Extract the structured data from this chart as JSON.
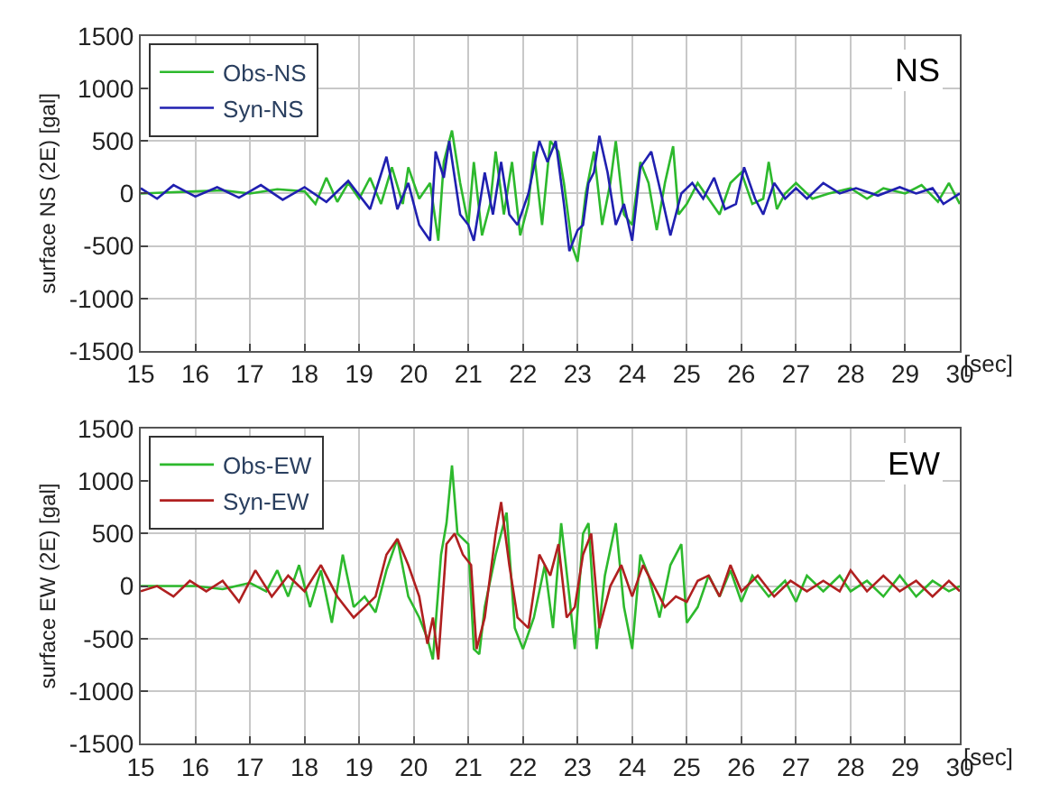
{
  "chart_data": [
    {
      "type": "line",
      "xlabel": "[sec]",
      "ylabel": "surface NS (2E) [gal]",
      "xlim": [
        15,
        30
      ],
      "ylim": [
        -1500,
        1500
      ],
      "xticks": [
        15,
        16,
        17,
        18,
        19,
        20,
        21,
        22,
        23,
        24,
        25,
        26,
        27,
        28,
        29,
        30
      ],
      "yticks": [
        -1500,
        -1000,
        -500,
        0,
        500,
        1000,
        1500
      ],
      "grid": true,
      "legend": "top left",
      "marker": "none",
      "line_style": "solid",
      "annotations": [
        "NS"
      ],
      "series": [
        {
          "name": "Obs-NS",
          "color": "#2db92d",
          "x": [
            15,
            15.5,
            16,
            16.5,
            17,
            17.5,
            18,
            18.2,
            18.4,
            18.6,
            18.8,
            19,
            19.2,
            19.4,
            19.6,
            19.8,
            19.9,
            20.1,
            20.3,
            20.45,
            20.55,
            20.7,
            20.85,
            21,
            21.1,
            21.25,
            21.4,
            21.5,
            21.65,
            21.8,
            21.95,
            22.1,
            22.2,
            22.35,
            22.5,
            22.65,
            22.75,
            22.9,
            23,
            23.15,
            23.3,
            23.45,
            23.6,
            23.7,
            23.85,
            24,
            24.15,
            24.3,
            24.45,
            24.6,
            24.75,
            24.85,
            25,
            25.2,
            25.4,
            25.6,
            25.8,
            26,
            26.2,
            26.4,
            26.5,
            26.65,
            26.8,
            27,
            27.3,
            27.6,
            28,
            28.3,
            28.6,
            29,
            29.3,
            29.6,
            29.8,
            30
          ],
          "values": [
            0,
            10,
            20,
            30,
            0,
            40,
            20,
            -100,
            150,
            -80,
            100,
            -50,
            150,
            -100,
            250,
            -100,
            250,
            -50,
            100,
            -450,
            300,
            600,
            100,
            -300,
            300,
            -400,
            -100,
            400,
            -200,
            300,
            -400,
            -100,
            400,
            -300,
            500,
            400,
            100,
            -500,
            -650,
            0,
            400,
            -300,
            100,
            500,
            -200,
            -300,
            300,
            100,
            -350,
            100,
            450,
            -200,
            -100,
            100,
            -50,
            -200,
            100,
            200,
            -100,
            -50,
            300,
            -150,
            0,
            100,
            -50,
            0,
            50,
            -50,
            50,
            0,
            80,
            -80,
            100,
            -100
          ]
        },
        {
          "name": "Syn-NS",
          "color": "#2020b0",
          "x": [
            15,
            15.3,
            15.6,
            16,
            16.4,
            16.8,
            17.2,
            17.6,
            18,
            18.4,
            18.8,
            19.2,
            19.5,
            19.7,
            19.9,
            20.1,
            20.3,
            20.4,
            20.55,
            20.65,
            20.85,
            21,
            21.1,
            21.3,
            21.45,
            21.6,
            21.75,
            21.9,
            22.1,
            22.3,
            22.45,
            22.6,
            22.75,
            22.85,
            23,
            23.1,
            23.2,
            23.3,
            23.4,
            23.55,
            23.7,
            23.85,
            24,
            24.15,
            24.35,
            24.55,
            24.7,
            24.9,
            25.1,
            25.3,
            25.5,
            25.7,
            25.9,
            26.05,
            26.25,
            26.4,
            26.6,
            26.8,
            27,
            27.2,
            27.5,
            27.8,
            28.1,
            28.5,
            28.9,
            29.2,
            29.5,
            29.7,
            30
          ],
          "values": [
            50,
            -50,
            80,
            -30,
            60,
            -40,
            80,
            -60,
            60,
            -80,
            120,
            -150,
            350,
            -150,
            100,
            -300,
            -450,
            400,
            150,
            500,
            -200,
            -300,
            -450,
            200,
            -200,
            300,
            -200,
            -300,
            0,
            500,
            300,
            500,
            -100,
            -550,
            -350,
            -300,
            100,
            200,
            550,
            200,
            -300,
            -100,
            -450,
            250,
            400,
            -50,
            -400,
            0,
            100,
            -50,
            150,
            -150,
            -100,
            250,
            -50,
            -200,
            100,
            -50,
            50,
            -50,
            100,
            0,
            50,
            -20,
            60,
            0,
            50,
            -100,
            0
          ]
        }
      ]
    },
    {
      "type": "line",
      "xlabel": "[sec]",
      "ylabel": "surface EW (2E) [gal]",
      "xlim": [
        15,
        30
      ],
      "ylim": [
        -1500,
        1500
      ],
      "xticks": [
        15,
        16,
        17,
        18,
        19,
        20,
        21,
        22,
        23,
        24,
        25,
        26,
        27,
        28,
        29,
        30
      ],
      "yticks": [
        -1500,
        -1000,
        -500,
        0,
        500,
        1000,
        1500
      ],
      "grid": true,
      "legend": "top left",
      "marker": "none",
      "line_style": "solid",
      "annotations": [
        "EW"
      ],
      "series": [
        {
          "name": "Obs-EW",
          "color": "#2db92d",
          "x": [
            15,
            16,
            16.5,
            17,
            17.3,
            17.5,
            17.7,
            17.9,
            18.1,
            18.3,
            18.5,
            18.7,
            18.9,
            19.1,
            19.3,
            19.5,
            19.7,
            19.9,
            20.1,
            20.25,
            20.35,
            20.5,
            20.6,
            20.7,
            20.8,
            21,
            21.1,
            21.2,
            21.3,
            21.5,
            21.7,
            21.85,
            22,
            22.2,
            22.4,
            22.55,
            22.7,
            22.85,
            22.95,
            23.1,
            23.2,
            23.35,
            23.5,
            23.7,
            23.85,
            24,
            24.15,
            24.3,
            24.5,
            24.7,
            24.9,
            25,
            25.2,
            25.4,
            25.6,
            25.8,
            26,
            26.2,
            26.5,
            26.8,
            27,
            27.2,
            27.5,
            27.8,
            28,
            28.3,
            28.6,
            28.9,
            29.2,
            29.5,
            29.8,
            30
          ],
          "values": [
            0,
            0,
            -30,
            30,
            -50,
            150,
            -100,
            200,
            -200,
            150,
            -350,
            300,
            -200,
            -100,
            -250,
            150,
            450,
            -100,
            -300,
            -500,
            -700,
            300,
            600,
            1150,
            500,
            400,
            -600,
            -650,
            -200,
            300,
            700,
            -400,
            -600,
            -300,
            200,
            -400,
            600,
            -100,
            -600,
            500,
            600,
            -600,
            100,
            600,
            -200,
            -600,
            300,
            100,
            -300,
            200,
            400,
            -350,
            -200,
            100,
            -100,
            150,
            -150,
            100,
            -100,
            50,
            -150,
            100,
            -50,
            100,
            -50,
            50,
            -100,
            100,
            -100,
            50,
            -50,
            0
          ]
        },
        {
          "name": "Syn-EW",
          "color": "#b02020",
          "x": [
            15,
            15.3,
            15.6,
            15.9,
            16.2,
            16.5,
            16.8,
            17.1,
            17.4,
            17.7,
            18,
            18.3,
            18.6,
            18.9,
            19.1,
            19.3,
            19.5,
            19.7,
            19.9,
            20.1,
            20.25,
            20.35,
            20.45,
            20.6,
            20.75,
            20.9,
            21.05,
            21.15,
            21.3,
            21.5,
            21.6,
            21.75,
            21.9,
            22.1,
            22.3,
            22.5,
            22.65,
            22.8,
            22.95,
            23.1,
            23.25,
            23.4,
            23.6,
            23.8,
            24,
            24.2,
            24.4,
            24.6,
            24.8,
            25,
            25.2,
            25.4,
            25.6,
            25.8,
            26,
            26.3,
            26.6,
            26.9,
            27.2,
            27.5,
            27.8,
            28,
            28.3,
            28.6,
            28.9,
            29.2,
            29.5,
            29.8,
            30
          ],
          "values": [
            -50,
            0,
            -100,
            50,
            -50,
            50,
            -150,
            150,
            -100,
            100,
            -50,
            200,
            -100,
            -300,
            -200,
            -100,
            300,
            450,
            200,
            -100,
            -550,
            -300,
            -700,
            400,
            500,
            300,
            200,
            -600,
            -300,
            500,
            800,
            200,
            -300,
            -400,
            300,
            100,
            400,
            -300,
            -200,
            300,
            500,
            -400,
            0,
            200,
            -100,
            200,
            0,
            -200,
            -100,
            -150,
            50,
            100,
            -100,
            200,
            -50,
            100,
            -100,
            50,
            -50,
            50,
            -50,
            150,
            -50,
            100,
            -50,
            50,
            -100,
            50,
            -50
          ]
        }
      ]
    }
  ]
}
